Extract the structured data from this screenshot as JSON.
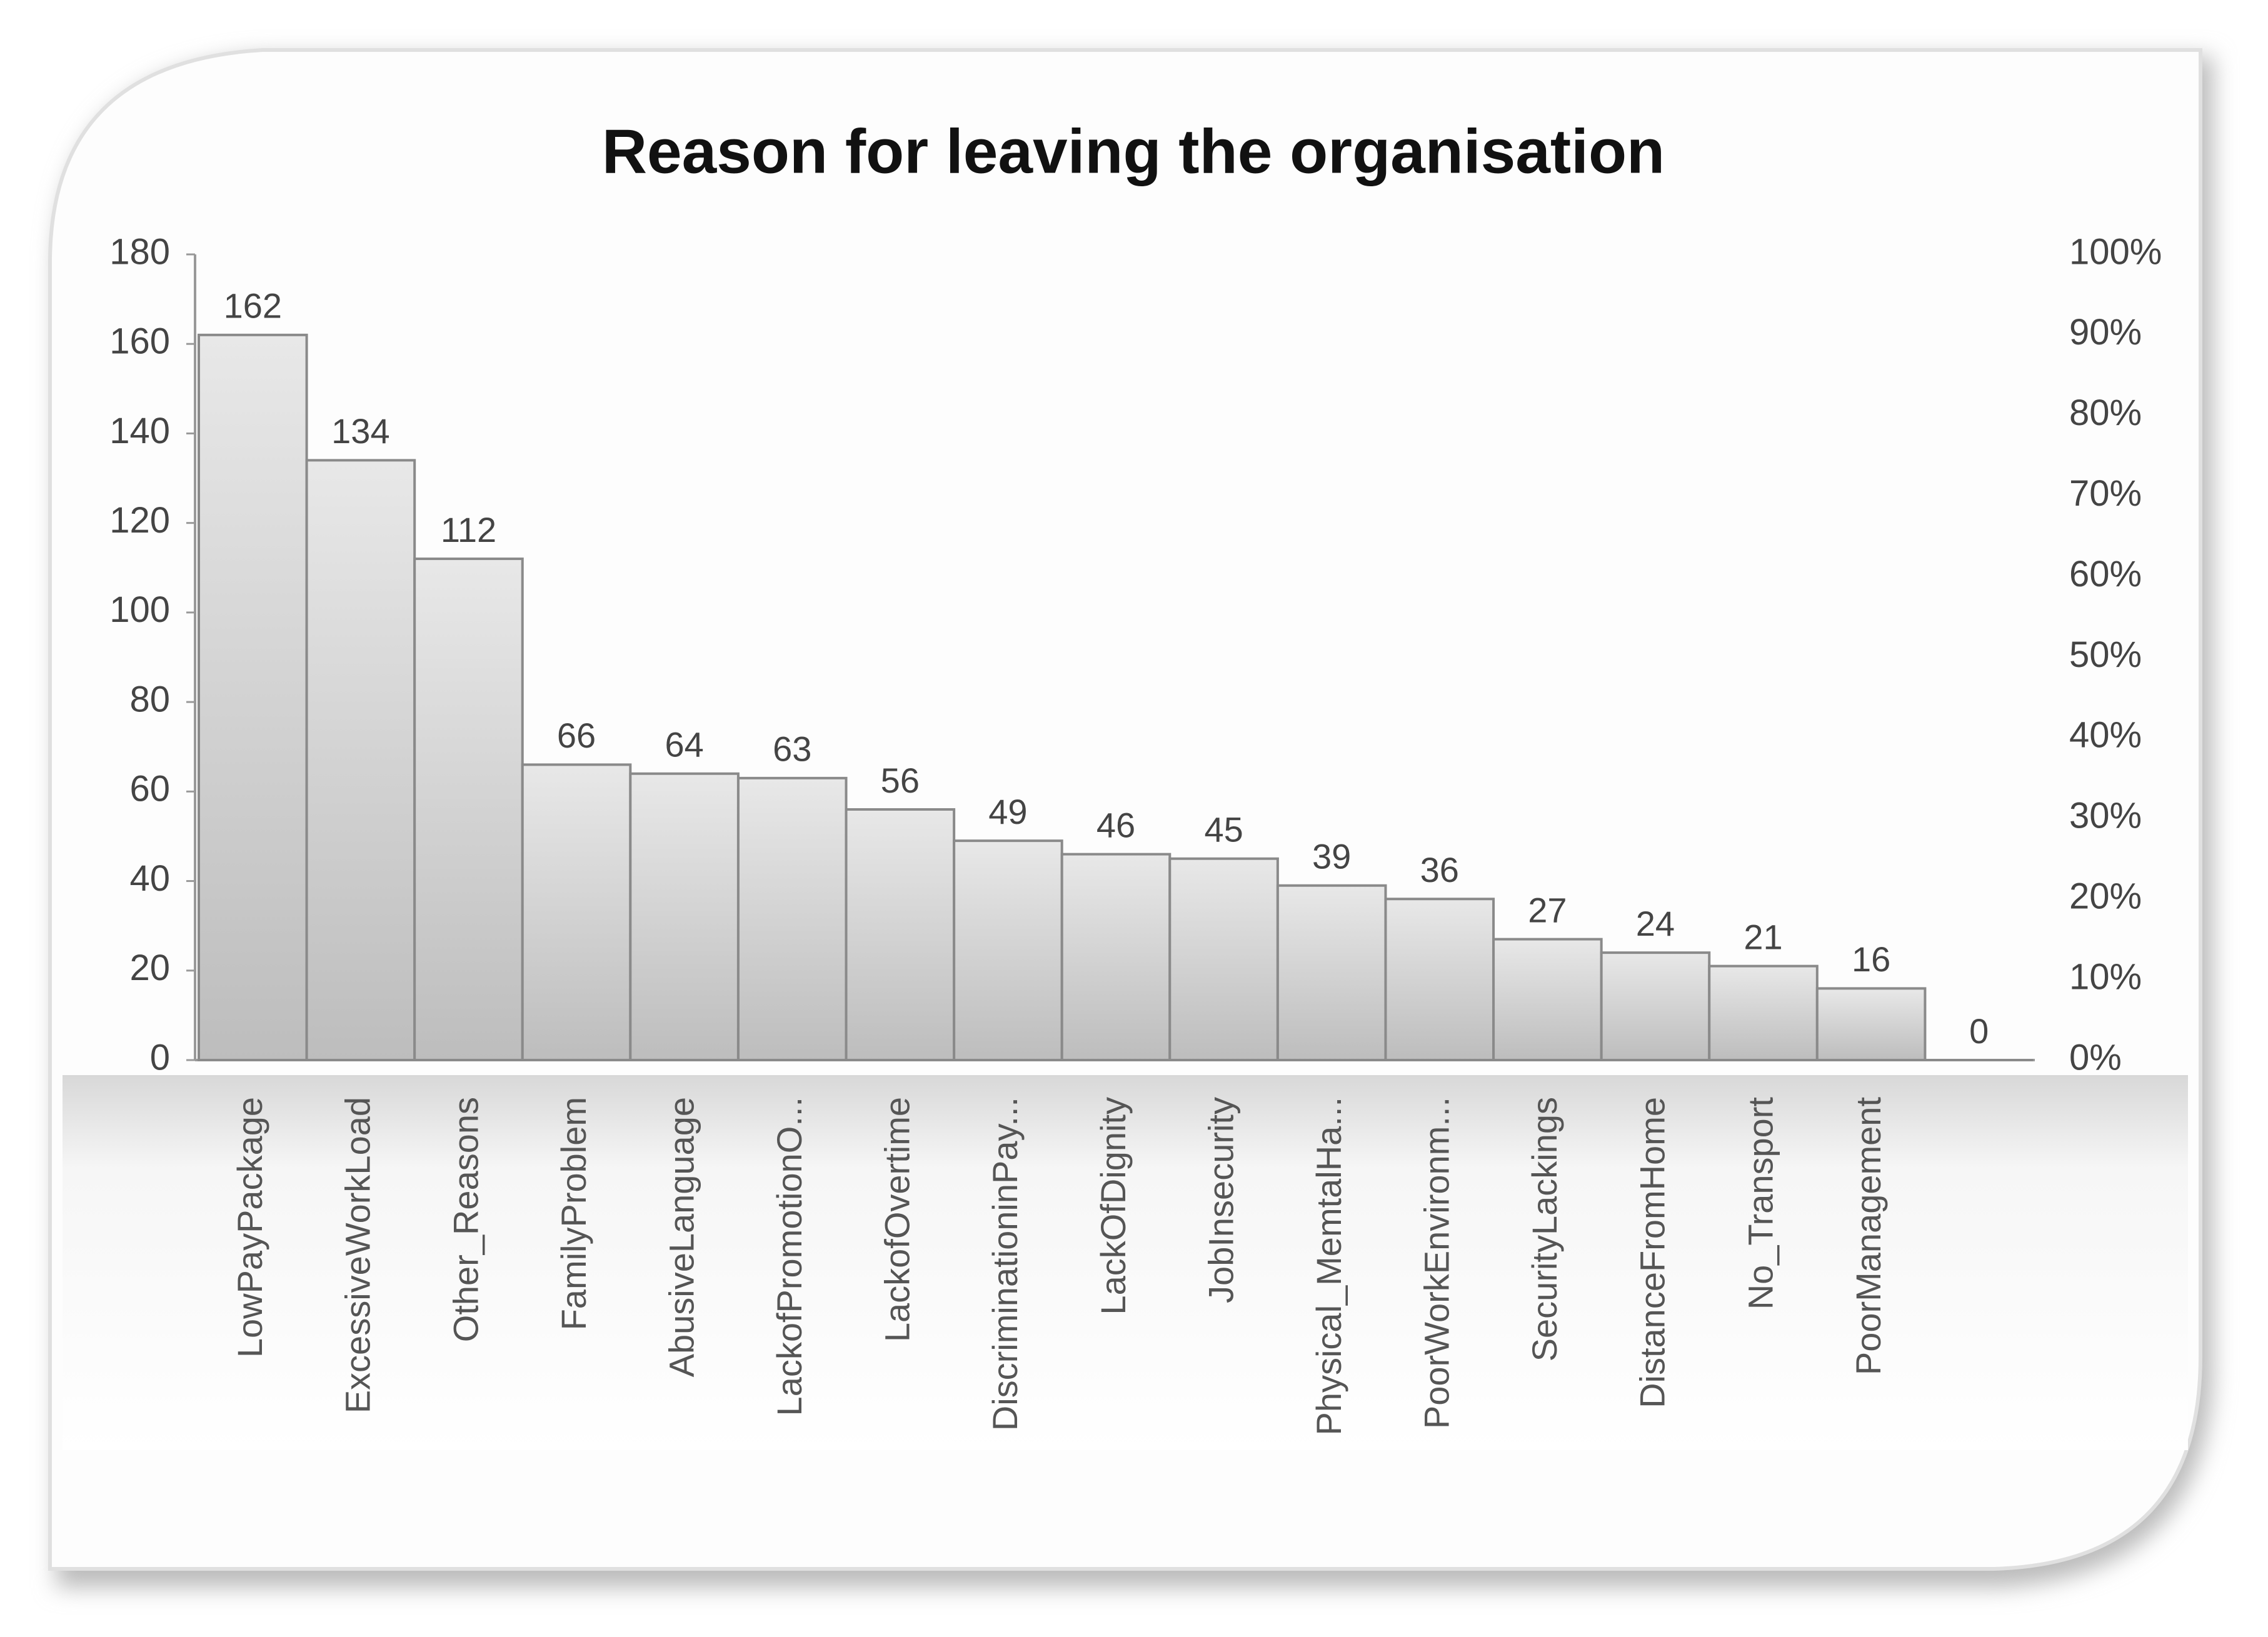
{
  "chart_data": {
    "type": "bar",
    "title": "Reason for leaving the organisation",
    "categories": [
      "LowPayPackage",
      "ExcessiveWorkLoad",
      "Other_Reasons",
      "FamilyProblem",
      "AbusiveLanguage",
      "LackofPromotionO...",
      "LackofOvertime",
      "DiscriminationinPay...",
      "LackOfDignity",
      "JobInsecurity",
      "Physical_MemtalHa...",
      "PoorWorkEnvironm...",
      "SecurityLackings",
      "DistanceFromHome",
      "No_Transport",
      "PoorManagement",
      null
    ],
    "values": [
      162,
      134,
      112,
      66,
      64,
      63,
      56,
      49,
      46,
      45,
      39,
      36,
      27,
      24,
      21,
      16,
      0
    ],
    "color": "#c8c8c8",
    "ylim": [
      0,
      180
    ],
    "yticks": [
      0,
      20,
      40,
      60,
      80,
      100,
      120,
      140,
      160,
      180
    ],
    "y2lim": [
      0,
      100
    ],
    "y2ticks": [
      {
        "value": 0,
        "label": "0%"
      },
      {
        "value": 10,
        "label": "10%"
      },
      {
        "value": 20,
        "label": "20%"
      },
      {
        "value": 30,
        "label": "30%"
      },
      {
        "value": 40,
        "label": "40%"
      },
      {
        "value": 50,
        "label": "50%"
      },
      {
        "value": 60,
        "label": "60%"
      },
      {
        "value": 70,
        "label": "70%"
      },
      {
        "value": 80,
        "label": "80%"
      },
      {
        "value": 90,
        "label": "90%"
      },
      {
        "value": 100,
        "label": "100%"
      }
    ],
    "grid": false
  }
}
